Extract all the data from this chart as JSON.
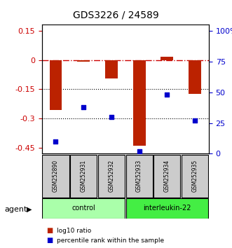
{
  "title": "GDS3226 / 24589",
  "samples": [
    "GSM252890",
    "GSM252931",
    "GSM252932",
    "GSM252933",
    "GSM252934",
    "GSM252935"
  ],
  "log10_ratio": [
    -0.255,
    -0.01,
    -0.095,
    -0.44,
    0.015,
    -0.175
  ],
  "percentile_rank": [
    10,
    38,
    30,
    2,
    48,
    27
  ],
  "ylim_left": [
    -0.48,
    0.18
  ],
  "ylim_right": [
    0,
    105
  ],
  "yticks_left": [
    0.15,
    0,
    -0.15,
    -0.3,
    -0.45
  ],
  "yticks_right": [
    100,
    75,
    50,
    25,
    0
  ],
  "hlines": [
    -0.15,
    -0.3
  ],
  "control_samples": [
    "GSM252890",
    "GSM252931",
    "GSM252932"
  ],
  "interleukin_samples": [
    "GSM252933",
    "GSM252934",
    "GSM252935"
  ],
  "control_label": "control",
  "interleukin_label": "interleukin-22",
  "agent_label": "agent",
  "legend_log10": "log10 ratio",
  "legend_percentile": "percentile rank within the sample",
  "bar_color": "#BB2200",
  "dot_color": "#0000CC",
  "dashed_line_color": "#CC0000",
  "control_bg": "#AAFFAA",
  "interleukin_bg": "#44EE44",
  "sample_bg": "#CCCCCC"
}
